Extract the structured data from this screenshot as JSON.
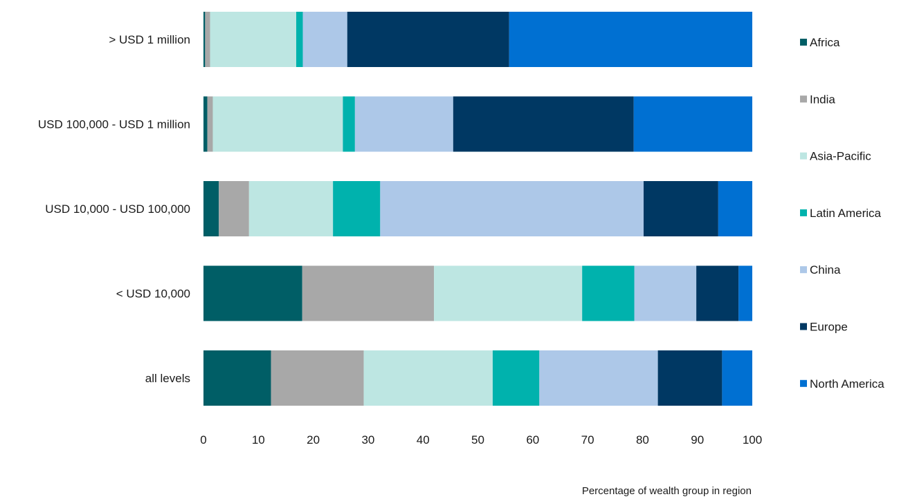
{
  "chart_data": {
    "type": "bar",
    "orientation": "horizontal",
    "stacked": true,
    "categories": [
      "> USD 1 million",
      "USD 100,000 - USD 1 million",
      "USD 10,000 - USD 100,000",
      "< USD 10,000",
      "all levels"
    ],
    "series": [
      {
        "name": "Africa",
        "color": "#005e66",
        "values": [
          0.3,
          0.7,
          2.8,
          18.0,
          12.3
        ]
      },
      {
        "name": "India",
        "color": "#a8a8a8",
        "values": [
          0.9,
          1.0,
          5.5,
          24.0,
          16.9
        ]
      },
      {
        "name": "Asia-Pacific",
        "color": "#bde6e2",
        "values": [
          15.7,
          23.7,
          15.3,
          27.0,
          23.5
        ]
      },
      {
        "name": "Latin America",
        "color": "#00b2ad",
        "values": [
          1.2,
          2.2,
          8.6,
          9.5,
          8.5
        ]
      },
      {
        "name": "China",
        "color": "#adc8e8",
        "values": [
          8.1,
          17.9,
          48.0,
          11.3,
          21.6
        ]
      },
      {
        "name": "Europe",
        "color": "#003863",
        "values": [
          29.5,
          32.9,
          13.6,
          7.7,
          11.7
        ]
      },
      {
        "name": "North America",
        "color": "#0070d2",
        "values": [
          44.3,
          21.6,
          6.2,
          2.5,
          5.5
        ]
      }
    ],
    "xlim": [
      0,
      100
    ],
    "xticks": [
      0,
      10,
      20,
      30,
      40,
      50,
      60,
      70,
      80,
      90,
      100
    ],
    "xlabel": "Percentage of wealth group in region",
    "ylabel": "",
    "title": "",
    "legend_position": "right",
    "grid": false
  }
}
